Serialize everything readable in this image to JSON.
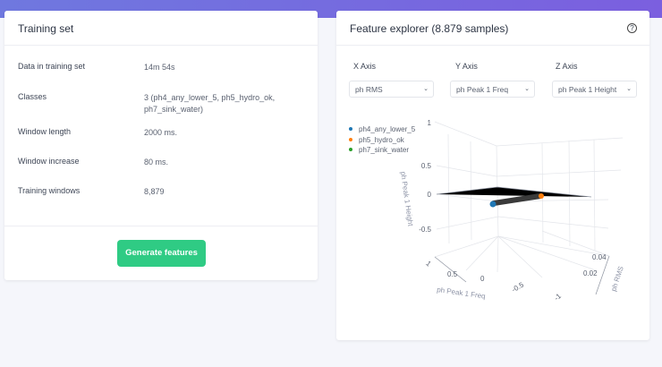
{
  "training": {
    "title": "Training set",
    "rows": [
      {
        "label": "Data in training set",
        "value": "14m 54s"
      },
      {
        "label": "Classes",
        "value": "3 (ph4_any_lower_5, ph5_hydro_ok, ph7_sink_water)"
      },
      {
        "label": "Window length",
        "value": "2000 ms."
      },
      {
        "label": "Window increase",
        "value": "80 ms."
      },
      {
        "label": "Training windows",
        "value": "8,879"
      }
    ],
    "button": "Generate features"
  },
  "explorer": {
    "title": "Feature explorer (8.879 samples)",
    "help": "?",
    "x_label": "X Axis",
    "y_label": "Y Axis",
    "z_label": "Z Axis",
    "x_value": "ph RMS",
    "y_value": "ph Peak 1 Freq",
    "z_value": "ph Peak 1 Height"
  },
  "chart_data": {
    "type": "scatter3d",
    "legend": [
      {
        "name": "ph4_any_lower_5",
        "color": "#1f77b4"
      },
      {
        "name": "ph5_hydro_ok",
        "color": "#ff7f0e"
      },
      {
        "name": "ph7_sink_water",
        "color": "#2ca02c"
      }
    ],
    "legend_placement": "top-left",
    "axes": {
      "x": {
        "title": "ph RMS",
        "ticks": [
          "0.02",
          "0.04"
        ]
      },
      "y": {
        "title": "ph Peak 1 Freq",
        "ticks": [
          "1",
          "0.5",
          "0",
          "-0.5",
          "-1"
        ]
      },
      "z": {
        "title": "ph Peak 1 Height",
        "ticks": [
          "1",
          "0.5",
          "0",
          "-0.5"
        ]
      }
    }
  }
}
